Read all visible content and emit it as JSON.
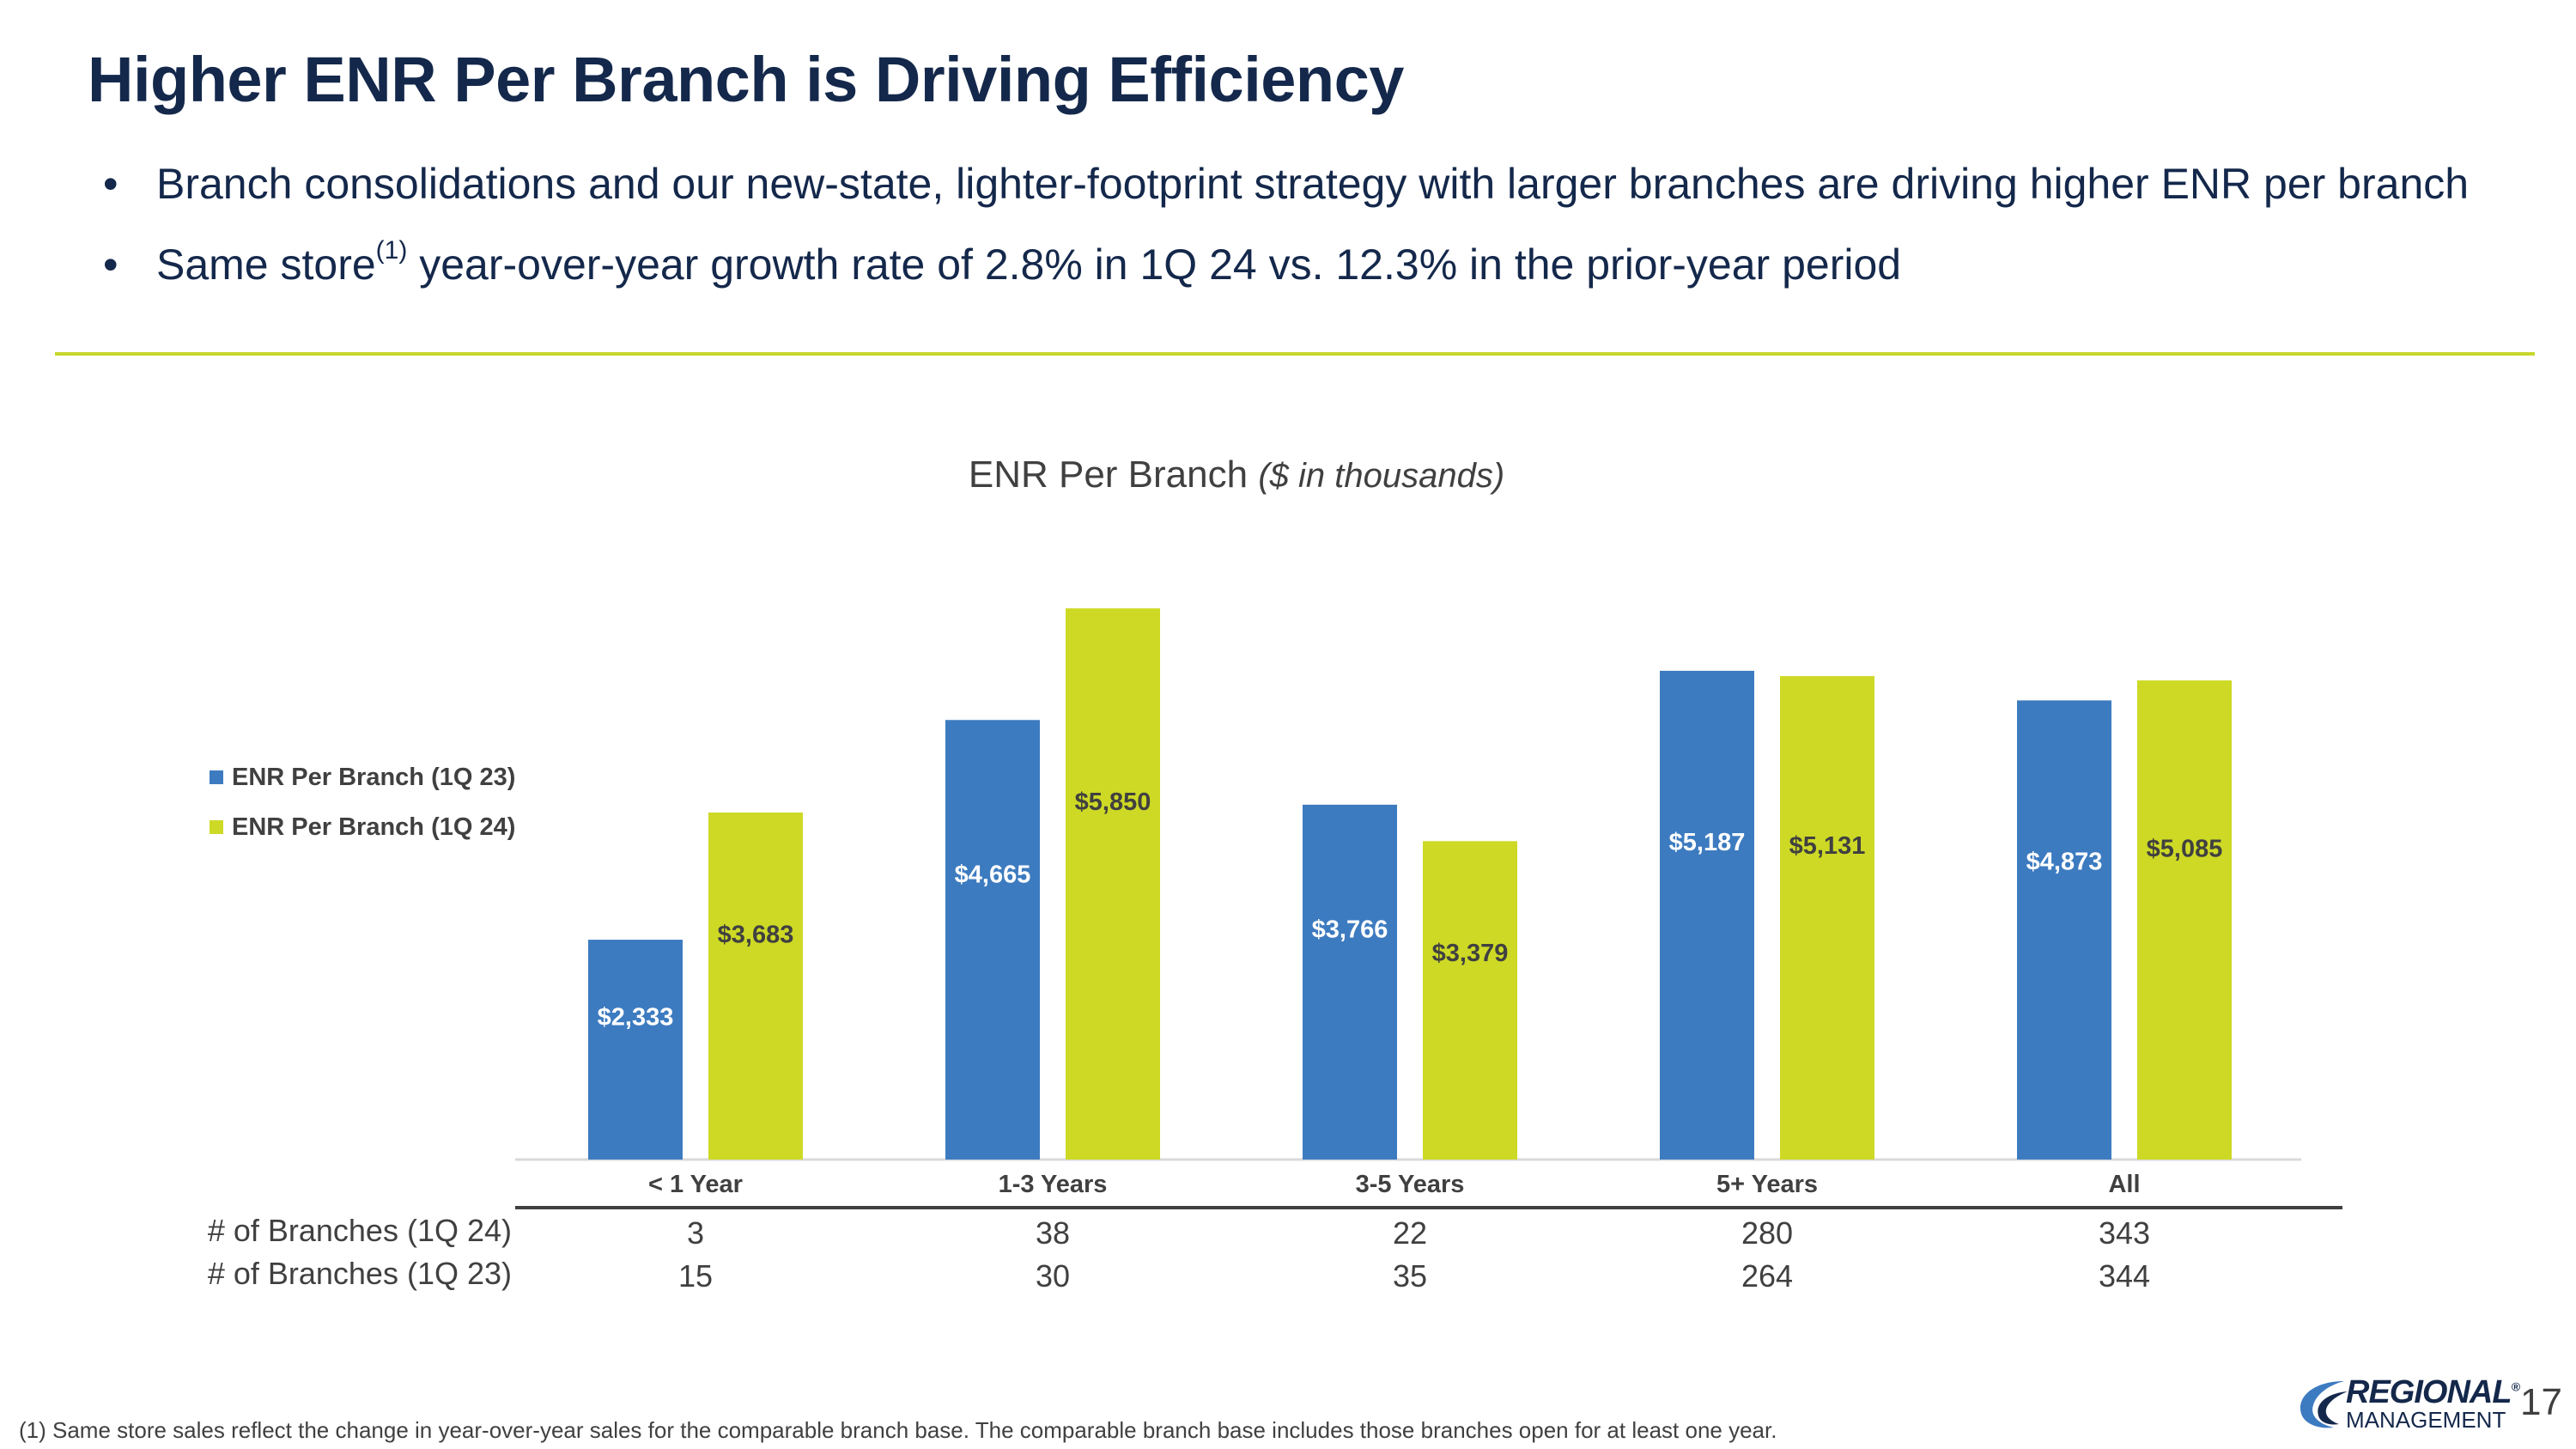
{
  "slide": {
    "title": "Higher ENR Per Branch is Driving Efficiency",
    "bullets": [
      {
        "text": "Branch consolidations and our new-state, lighter-footprint strategy with larger branches are driving higher ENR per branch"
      },
      {
        "text_before": "Same store",
        "superscript": "(1)",
        "text_after": " year-over-year growth rate of 2.8% in 1Q 24 vs. 12.3% in the prior-year period"
      }
    ],
    "footnote": "(1)  Same store sales reflect the change in year-over-year sales for the comparable branch base. The comparable branch base includes those branches open for at least one year.",
    "page_number": "17",
    "logo": {
      "line1": "REGIONAL",
      "line2": "MANAGEMENT",
      "tm": "®"
    }
  },
  "colors": {
    "title": "#14284b",
    "accent_line": "#c8d62b",
    "series_1q23": "#3d7bc0",
    "series_1q24": "#cdd925",
    "text": "#404040"
  },
  "chart_data": {
    "type": "bar",
    "title": "ENR Per Branch",
    "subtitle": "($ in thousands)",
    "categories": [
      "< 1 Year",
      "1-3 Years",
      "3-5 Years",
      "5+ Years",
      "All"
    ],
    "series": [
      {
        "name": "ENR Per Branch (1Q 23)",
        "values": [
          2333,
          4665,
          3766,
          5187,
          4873
        ],
        "labels": [
          "$2,333",
          "$4,665",
          "$3,766",
          "$5,187",
          "$4,873"
        ]
      },
      {
        "name": "ENR Per Branch (1Q 24)",
        "values": [
          3683,
          5850,
          3379,
          5131,
          5085
        ],
        "labels": [
          "$3,683",
          "$5,850",
          "$3,379",
          "$5,131",
          "$5,085"
        ]
      }
    ],
    "ylim": [
      0,
      6500
    ],
    "legend_position": "left",
    "table_rows": [
      {
        "label": "# of Branches (1Q 24)",
        "values": [
          "3",
          "38",
          "22",
          "280",
          "343"
        ]
      },
      {
        "label": "# of Branches (1Q 23)",
        "values": [
          "15",
          "30",
          "35",
          "264",
          "344"
        ]
      }
    ]
  }
}
